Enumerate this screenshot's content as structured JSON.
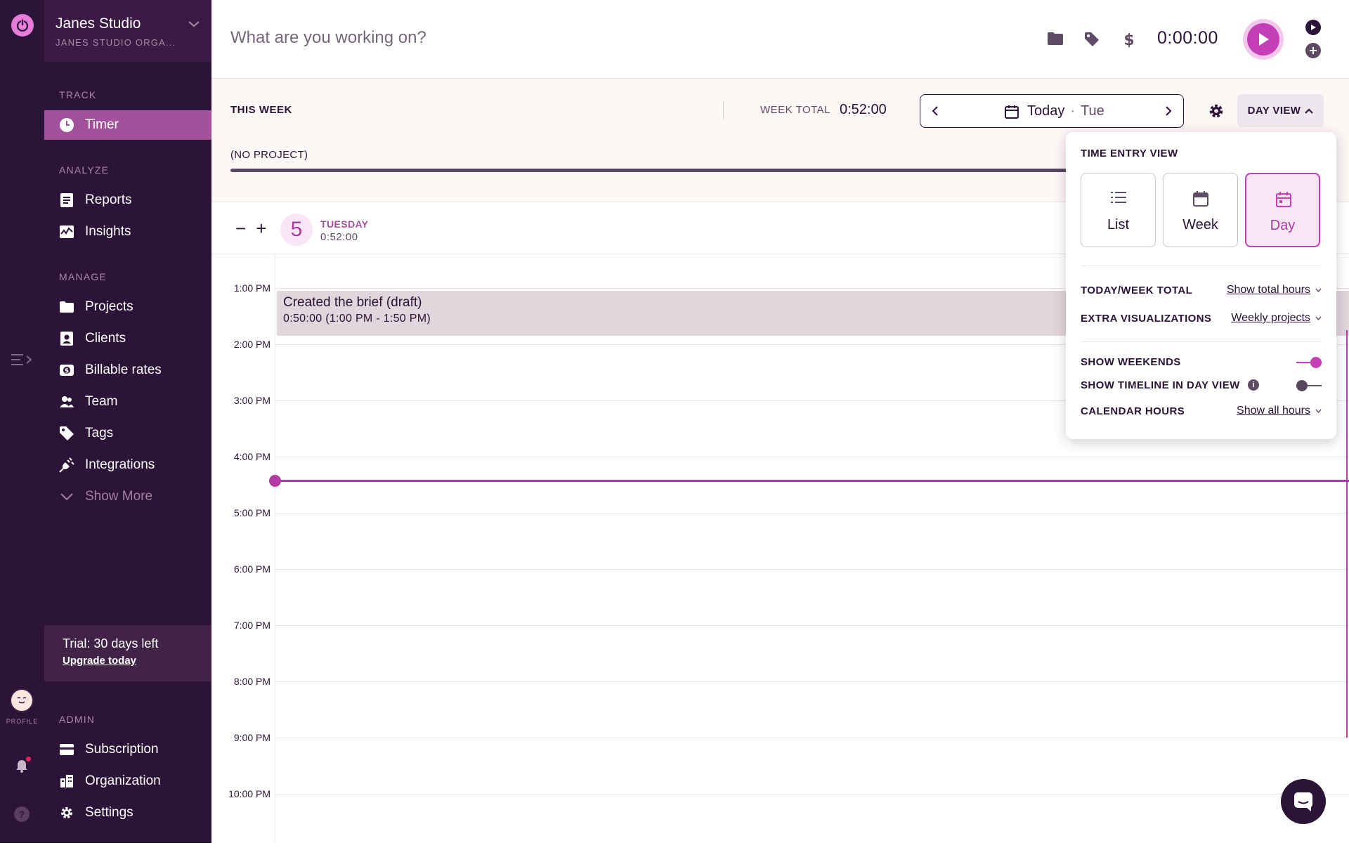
{
  "colors": {
    "primary": "#c43fb6",
    "sidebar_bg": "#2c1338",
    "active_nav": "#a3519a",
    "accent_pink": "#e57cd8"
  },
  "workspace": {
    "name": "Janes Studio",
    "org": "JANES STUDIO ORGA..."
  },
  "sidebar": {
    "track_label": "TRACK",
    "timer": "Timer",
    "analyze_label": "ANALYZE",
    "reports": "Reports",
    "insights": "Insights",
    "manage_label": "MANAGE",
    "projects": "Projects",
    "clients": "Clients",
    "billable_rates": "Billable rates",
    "team": "Team",
    "tags": "Tags",
    "integrations": "Integrations",
    "show_more": "Show More",
    "admin_label": "ADMIN",
    "subscription": "Subscription",
    "organization": "Organization",
    "settings": "Settings"
  },
  "trial": {
    "text": "Trial: 30 days left",
    "link": "Upgrade today"
  },
  "rail": {
    "profile_label": "PROFILE",
    "help": "?"
  },
  "timer": {
    "placeholder": "What are you working on?",
    "clock": "0:00:00"
  },
  "week": {
    "this_week": "THIS WEEK",
    "total_label": "WEEK TOTAL",
    "total_value": "0:52:00",
    "date_today": "Today",
    "date_sep": "·",
    "date_dow": "Tue",
    "view_button": "DAY VIEW",
    "no_project": "(NO PROJECT)"
  },
  "day": {
    "minus": "−",
    "plus": "+",
    "number": "5",
    "name": "TUESDAY",
    "total": "0:52:00"
  },
  "hours": [
    "1:00 PM",
    "2:00 PM",
    "3:00 PM",
    "4:00 PM",
    "5:00 PM",
    "6:00 PM",
    "7:00 PM",
    "8:00 PM",
    "9:00 PM",
    "10:00 PM"
  ],
  "entry": {
    "description": "Created the brief (draft)",
    "time": "0:50:00 (1:00 PM - 1:50 PM)"
  },
  "popover": {
    "title": "TIME ENTRY VIEW",
    "views": [
      {
        "label": "List",
        "icon": "list-icon",
        "selected": false
      },
      {
        "label": "Week",
        "icon": "calendar-week-icon",
        "selected": false
      },
      {
        "label": "Day",
        "icon": "calendar-day-icon",
        "selected": true
      }
    ],
    "rows": {
      "today_week_total": {
        "label": "TODAY/WEEK TOTAL",
        "value": "Show total hours"
      },
      "extra_visualizations": {
        "label": "EXTRA VISUALIZATIONS",
        "value": "Weekly projects"
      },
      "show_weekends": {
        "label": "SHOW WEEKENDS",
        "on": true
      },
      "show_timeline": {
        "label": "SHOW TIMELINE IN DAY VIEW",
        "on": false,
        "info": "i"
      },
      "calendar_hours": {
        "label": "CALENDAR HOURS",
        "value": "Show all hours"
      }
    }
  }
}
